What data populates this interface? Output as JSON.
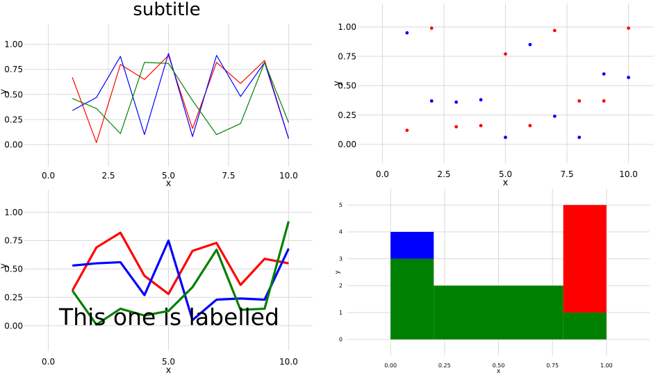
{
  "chart_data": [
    {
      "type": "line",
      "title": "subtitle",
      "xlabel": "x",
      "ylabel": "y",
      "xlim": [
        -1.0,
        11.0
      ],
      "ylim": [
        -0.22,
        1.2
      ],
      "xticks": [
        "0.0",
        "2.5",
        "5.0",
        "7.5",
        "10.0"
      ],
      "yticks": [
        "0.00",
        "0.25",
        "0.50",
        "0.75",
        "1.00"
      ],
      "grid": true,
      "x": [
        1,
        2,
        3,
        4,
        5,
        6,
        7,
        8,
        9,
        10
      ],
      "series": [
        {
          "color": "#ff0000",
          "values": [
            0.67,
            0.02,
            0.8,
            0.65,
            0.89,
            0.16,
            0.82,
            0.61,
            0.84,
            0.06
          ]
        },
        {
          "color": "#0000ff",
          "values": [
            0.34,
            0.47,
            0.88,
            0.1,
            0.91,
            0.08,
            0.89,
            0.48,
            0.82,
            0.06
          ]
        },
        {
          "color": "#008000",
          "values": [
            0.46,
            0.36,
            0.11,
            0.82,
            0.81,
            0.44,
            0.1,
            0.21,
            0.82,
            0.22
          ]
        }
      ]
    },
    {
      "type": "scatter",
      "title": "",
      "xlabel": "x",
      "ylabel": "y",
      "xlim": [
        -1.0,
        11.0
      ],
      "ylim": [
        -0.16,
        1.2
      ],
      "xticks": [
        "0.0",
        "2.5",
        "5.0",
        "7.5",
        "10.0"
      ],
      "yticks": [
        "0.00",
        "0.25",
        "0.50",
        "0.75",
        "1.00"
      ],
      "grid": true,
      "series": [
        {
          "color": "#ff0000",
          "x": [
            1,
            2,
            3,
            4,
            5,
            6,
            7,
            8,
            9,
            10
          ],
          "values": [
            0.12,
            0.99,
            0.15,
            0.16,
            0.77,
            0.16,
            0.97,
            0.37,
            0.37,
            0.99
          ]
        },
        {
          "color": "#0000ff",
          "x": [
            1,
            2,
            3,
            4,
            5,
            6,
            7,
            8,
            9,
            10
          ],
          "values": [
            0.95,
            0.37,
            0.36,
            0.38,
            0.06,
            0.85,
            0.24,
            0.06,
            0.6,
            0.57
          ]
        }
      ]
    },
    {
      "type": "line",
      "title": "",
      "annotation": "This one is labelled",
      "xlabel": "x",
      "ylabel": "y",
      "xlim": [
        -1.0,
        11.0
      ],
      "ylim": [
        -0.22,
        1.2
      ],
      "xticks": [
        "0.0",
        "5.0",
        "10.0"
      ],
      "yticks": [
        "0.00",
        "0.25",
        "0.50",
        "0.75",
        "1.00"
      ],
      "grid": true,
      "x": [
        1,
        2,
        3,
        4,
        5,
        6,
        7,
        8,
        9,
        10
      ],
      "series": [
        {
          "color": "#ff0000",
          "values": [
            0.31,
            0.69,
            0.82,
            0.44,
            0.28,
            0.66,
            0.73,
            0.36,
            0.59,
            0.55
          ]
        },
        {
          "color": "#0000ff",
          "values": [
            0.53,
            0.55,
            0.56,
            0.27,
            0.75,
            0.05,
            0.23,
            0.24,
            0.23,
            0.68
          ]
        },
        {
          "color": "#008000",
          "values": [
            0.31,
            0.01,
            0.15,
            0.09,
            0.13,
            0.34,
            0.67,
            0.14,
            0.15,
            0.92
          ]
        }
      ]
    },
    {
      "type": "bar",
      "title": "",
      "xlabel": "x",
      "ylabel": "y",
      "xlim": [
        -0.2,
        1.2
      ],
      "ylim": [
        -0.6,
        5.6
      ],
      "xticks": [
        "0.00",
        "0.25",
        "0.50",
        "0.75",
        "1.00"
      ],
      "xtick_values": [
        0,
        0.25,
        0.5,
        0.75,
        1.0
      ],
      "yticks": [
        "0",
        "1",
        "2",
        "3",
        "4",
        "5"
      ],
      "grid": true,
      "bars": [
        {
          "color": "#008000",
          "x0": 0.0,
          "x1": 0.2,
          "y0": 0,
          "y1": 3
        },
        {
          "color": "#0000ff",
          "x0": 0.0,
          "x1": 0.2,
          "y0": 3,
          "y1": 4
        },
        {
          "color": "#008000",
          "x0": 0.2,
          "x1": 0.8,
          "y0": 0,
          "y1": 2
        },
        {
          "color": "#008000",
          "x0": 0.8,
          "x1": 1.0,
          "y0": 0,
          "y1": 1
        },
        {
          "color": "#ff0000",
          "x0": 0.8,
          "x1": 1.0,
          "y0": 1,
          "y1": 5
        }
      ]
    }
  ]
}
